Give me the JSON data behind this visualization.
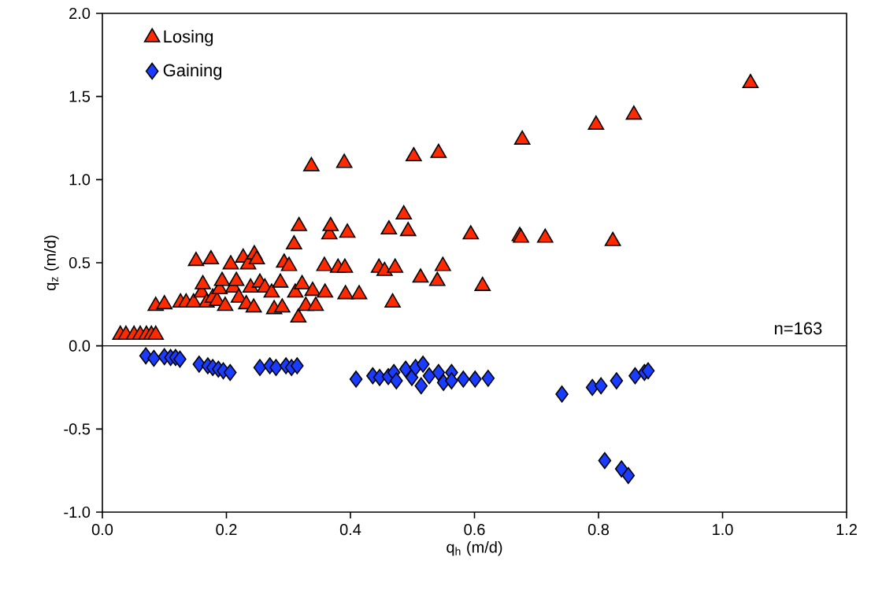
{
  "chart_data": {
    "type": "scatter",
    "xlabel": "q$_{h}$ (m/d)",
    "ylabel": "q$_{z}$ (m/d)",
    "xlim": [
      0,
      1.2
    ],
    "ylim": [
      -1,
      2
    ],
    "xticks": [
      {
        "value": 0,
        "label": "0.0"
      },
      0.2,
      0.4,
      0.6,
      0.8,
      {
        "value": 1,
        "label": "1.0"
      },
      1.2
    ],
    "yticks": [
      {
        "value": -1,
        "label": "-1.0"
      },
      -0.5,
      {
        "value": 0,
        "label": "0.0"
      },
      0.5,
      {
        "value": 1,
        "label": "1.0"
      },
      1.5,
      {
        "value": 2,
        "label": "2.0"
      }
    ],
    "legend": "top left",
    "ref_lines": [
      {
        "axis": "y",
        "value": 0,
        "label": null,
        "color": "#000000"
      }
    ],
    "annotations": [
      "n=163"
    ],
    "series": [
      {
        "name": "Losing",
        "color": "#ff2a00",
        "marker": "triangle",
        "x": [
          0.029,
          0.038,
          0.051,
          0.061,
          0.071,
          0.079,
          0.086,
          0.086,
          0.1,
          0.126,
          0.135,
          0.147,
          0.151,
          0.16,
          0.162,
          0.168,
          0.175,
          0.178,
          0.185,
          0.189,
          0.193,
          0.198,
          0.207,
          0.211,
          0.216,
          0.22,
          0.227,
          0.232,
          0.235,
          0.239,
          0.244,
          0.245,
          0.249,
          0.254,
          0.262,
          0.273,
          0.277,
          0.287,
          0.29,
          0.293,
          0.301,
          0.309,
          0.311,
          0.316,
          0.317,
          0.322,
          0.328,
          0.337,
          0.339,
          0.344,
          0.358,
          0.359,
          0.366,
          0.368,
          0.38,
          0.39,
          0.391,
          0.392,
          0.395,
          0.414,
          0.446,
          0.455,
          0.462,
          0.468,
          0.472,
          0.486,
          0.493,
          0.502,
          0.513,
          0.54,
          0.542,
          0.549,
          0.594,
          0.613,
          0.673,
          0.675,
          0.677,
          0.714,
          0.796,
          0.823,
          0.857,
          1.045
        ],
        "values": [
          0.066,
          0.066,
          0.066,
          0.066,
          0.066,
          0.066,
          0.066,
          0.24,
          0.25,
          0.26,
          0.26,
          0.26,
          0.51,
          0.32,
          0.37,
          0.26,
          0.52,
          0.29,
          0.27,
          0.34,
          0.39,
          0.24,
          0.49,
          0.35,
          0.39,
          0.29,
          0.53,
          0.25,
          0.49,
          0.35,
          0.23,
          0.55,
          0.52,
          0.38,
          0.35,
          0.32,
          0.22,
          0.38,
          0.23,
          0.5,
          0.48,
          0.61,
          0.32,
          0.17,
          0.72,
          0.37,
          0.24,
          1.08,
          0.33,
          0.24,
          0.48,
          0.32,
          0.67,
          0.72,
          0.47,
          1.1,
          0.47,
          0.31,
          0.68,
          0.31,
          0.47,
          0.45,
          0.7,
          0.26,
          0.47,
          0.79,
          0.69,
          1.14,
          0.41,
          0.39,
          1.16,
          0.48,
          0.67,
          0.36,
          0.66,
          0.65,
          1.24,
          0.65,
          1.33,
          0.63,
          1.39,
          1.58
        ]
      },
      {
        "name": "Gaining",
        "color": "#1a3cff",
        "marker": "diamond",
        "x": [
          0.07,
          0.083,
          0.1,
          0.11,
          0.118,
          0.125,
          0.156,
          0.17,
          0.178,
          0.187,
          0.195,
          0.206,
          0.254,
          0.27,
          0.28,
          0.296,
          0.305,
          0.314,
          0.409,
          0.436,
          0.447,
          0.461,
          0.47,
          0.474,
          0.489,
          0.499,
          0.505,
          0.514,
          0.517,
          0.527,
          0.542,
          0.55,
          0.563,
          0.563,
          0.582,
          0.601,
          0.622,
          0.741,
          0.79,
          0.804,
          0.81,
          0.829,
          0.837,
          0.848,
          0.859,
          0.874,
          0.88
        ],
        "values": [
          -0.06,
          -0.075,
          -0.065,
          -0.07,
          -0.07,
          -0.08,
          -0.11,
          -0.12,
          -0.13,
          -0.14,
          -0.15,
          -0.16,
          -0.13,
          -0.12,
          -0.13,
          -0.12,
          -0.13,
          -0.12,
          -0.2,
          -0.18,
          -0.19,
          -0.185,
          -0.16,
          -0.21,
          -0.14,
          -0.19,
          -0.13,
          -0.24,
          -0.11,
          -0.18,
          -0.16,
          -0.22,
          -0.16,
          -0.21,
          -0.2,
          -0.2,
          -0.195,
          -0.29,
          -0.25,
          -0.24,
          -0.69,
          -0.21,
          -0.74,
          -0.78,
          -0.18,
          -0.16,
          -0.15
        ]
      }
    ]
  }
}
